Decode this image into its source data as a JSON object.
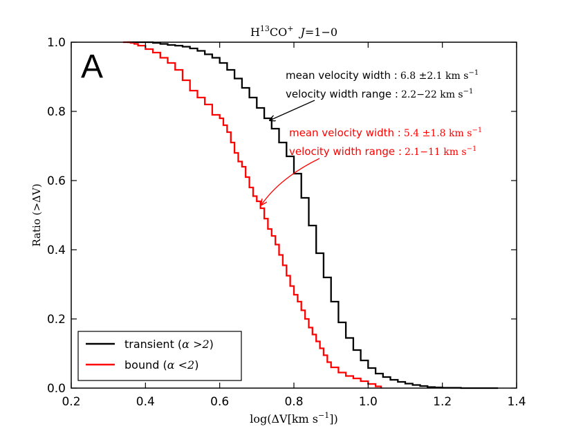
{
  "chart_data": {
    "type": "line",
    "panel_label": "A",
    "title": {
      "main": "H",
      "sup": "13",
      "mid": "CO",
      "sup2": "+",
      "transition_prefix": "J",
      "transition_value": "=1−0"
    },
    "xlabel": {
      "prefix": "log(ΔV[km s",
      "exponent": "−1",
      "suffix": "])"
    },
    "ylabel": "Ratio (>ΔV)",
    "xlim": [
      0.2,
      1.4
    ],
    "ylim": [
      0.0,
      1.0
    ],
    "xticks": [
      0.2,
      0.4,
      0.6,
      0.8,
      1.0,
      1.2,
      1.4
    ],
    "yticks": [
      0.0,
      0.2,
      0.4,
      0.6,
      0.8,
      1.0
    ],
    "xtick_labels": [
      "0.2",
      "0.4",
      "0.6",
      "0.8",
      "1.0",
      "1.2",
      "1.4"
    ],
    "ytick_labels": [
      "0.0",
      "0.2",
      "0.4",
      "0.6",
      "0.8",
      "1.0"
    ],
    "series": [
      {
        "name": "transient",
        "legend_label": "transient (",
        "legend_math": "α >2",
        "legend_close": ")",
        "color": "#000000",
        "x": [
          0.35,
          0.38,
          0.4,
          0.42,
          0.44,
          0.46,
          0.48,
          0.5,
          0.52,
          0.54,
          0.56,
          0.58,
          0.6,
          0.62,
          0.64,
          0.66,
          0.68,
          0.7,
          0.72,
          0.74,
          0.76,
          0.78,
          0.8,
          0.82,
          0.84,
          0.86,
          0.88,
          0.9,
          0.92,
          0.94,
          0.96,
          0.98,
          1.0,
          1.02,
          1.04,
          1.06,
          1.08,
          1.1,
          1.12,
          1.14,
          1.16,
          1.18,
          1.2,
          1.25,
          1.3,
          1.35
        ],
        "y": [
          1.0,
          1.0,
          1.0,
          0.998,
          0.995,
          0.992,
          0.99,
          0.987,
          0.982,
          0.975,
          0.965,
          0.955,
          0.94,
          0.92,
          0.895,
          0.868,
          0.84,
          0.81,
          0.78,
          0.75,
          0.71,
          0.67,
          0.62,
          0.55,
          0.47,
          0.39,
          0.32,
          0.25,
          0.19,
          0.145,
          0.11,
          0.08,
          0.058,
          0.042,
          0.032,
          0.024,
          0.018,
          0.013,
          0.009,
          0.006,
          0.003,
          0.002,
          0.001,
          0.0,
          0.0,
          0.0
        ]
      },
      {
        "name": "bound",
        "legend_label": "bound (",
        "legend_math": "α <2",
        "legend_close": ")",
        "color": "#ff0000",
        "x": [
          0.34,
          0.36,
          0.37,
          0.38,
          0.4,
          0.42,
          0.44,
          0.46,
          0.48,
          0.5,
          0.52,
          0.54,
          0.56,
          0.58,
          0.6,
          0.61,
          0.62,
          0.63,
          0.64,
          0.65,
          0.66,
          0.67,
          0.68,
          0.69,
          0.7,
          0.71,
          0.72,
          0.73,
          0.74,
          0.75,
          0.76,
          0.77,
          0.78,
          0.79,
          0.8,
          0.81,
          0.82,
          0.83,
          0.84,
          0.85,
          0.86,
          0.87,
          0.88,
          0.89,
          0.9,
          0.92,
          0.94,
          0.96,
          0.98,
          1.0,
          1.02,
          1.035
        ],
        "y": [
          1.0,
          0.998,
          0.995,
          0.99,
          0.98,
          0.97,
          0.955,
          0.94,
          0.92,
          0.89,
          0.86,
          0.84,
          0.82,
          0.79,
          0.78,
          0.76,
          0.74,
          0.71,
          0.68,
          0.655,
          0.64,
          0.61,
          0.58,
          0.555,
          0.54,
          0.52,
          0.49,
          0.46,
          0.44,
          0.415,
          0.385,
          0.355,
          0.325,
          0.295,
          0.27,
          0.25,
          0.225,
          0.2,
          0.175,
          0.155,
          0.135,
          0.115,
          0.095,
          0.075,
          0.06,
          0.045,
          0.035,
          0.028,
          0.02,
          0.012,
          0.005,
          0.0
        ]
      }
    ],
    "annotations": [
      {
        "name": "transient",
        "color": "#000000",
        "line1_text": "mean velocity width :",
        "line1_math": "6.8 ±2.1 km s",
        "line1_exp": "−1",
        "line2_text": "velocity width range :",
        "line2_math": "2.2−22 km s",
        "line2_exp": "−1",
        "arrow_target": [
          0.775,
          0.77
        ]
      },
      {
        "name": "bound",
        "color": "#ff0000",
        "line1_text": "mean velocity width :",
        "line1_math": "5.4 ±1.8 km s",
        "line1_exp": "−1",
        "line2_text": "velocity width range :",
        "line2_math": "2.1−11 km s",
        "line2_exp": "−1",
        "arrow_target": [
          0.71,
          0.525
        ]
      }
    ],
    "legend_position": "lower-left",
    "grid": false
  }
}
